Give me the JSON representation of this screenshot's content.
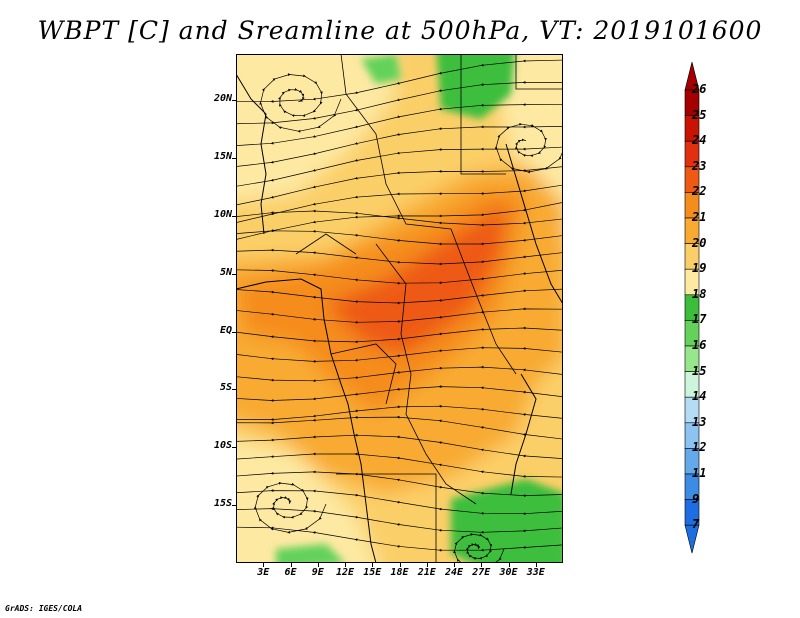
{
  "title": "WBPT [C] and Sreamline at 500hPa, VT: 2019101600",
  "map": {
    "variable": "WBPT [C]",
    "overlay": "Sreamline",
    "level": "500hPa",
    "valid_time": "2019101600",
    "lon_range": [
      0,
      36
    ],
    "lat_range": [
      -20,
      24
    ],
    "y_labels": [
      {
        "text": "20N",
        "lat": 20
      },
      {
        "text": "15N",
        "lat": 15
      },
      {
        "text": "10N",
        "lat": 10
      },
      {
        "text": "5N",
        "lat": 5
      },
      {
        "text": "EQ",
        "lat": 0
      },
      {
        "text": "5S",
        "lat": -5
      },
      {
        "text": "10S",
        "lat": -10
      },
      {
        "text": "15S",
        "lat": -15
      }
    ],
    "x_labels": [
      {
        "text": "3E",
        "lon": 3
      },
      {
        "text": "6E",
        "lon": 6
      },
      {
        "text": "9E",
        "lon": 9
      },
      {
        "text": "12E",
        "lon": 12
      },
      {
        "text": "15E",
        "lon": 15
      },
      {
        "text": "18E",
        "lon": 18
      },
      {
        "text": "21E",
        "lon": 21
      },
      {
        "text": "24E",
        "lon": 24
      },
      {
        "text": "27E",
        "lon": 27
      },
      {
        "text": "30E",
        "lon": 30
      },
      {
        "text": "33E",
        "lon": 33
      }
    ]
  },
  "colorbar": {
    "labels": [
      "26",
      "25",
      "24",
      "23",
      "22",
      "21",
      "20",
      "19",
      "18",
      "17",
      "16",
      "15",
      "14",
      "13",
      "12",
      "11",
      "9",
      "7"
    ],
    "colors": [
      "#a50000",
      "#c81400",
      "#e03010",
      "#ee5a14",
      "#f58c1e",
      "#f8aa32",
      "#fbcf68",
      "#fde9a2",
      "#3cbe3c",
      "#64d25a",
      "#96e68c",
      "#cdf5dc",
      "#b4dcf5",
      "#8cc3f0",
      "#64aaeb",
      "#3c8ce6",
      "#1e6ee1"
    ],
    "arrow_top_color": "#a50000",
    "arrow_bottom_color": "#1e6ee1"
  },
  "credit": "GrADS: IGES/COLA"
}
